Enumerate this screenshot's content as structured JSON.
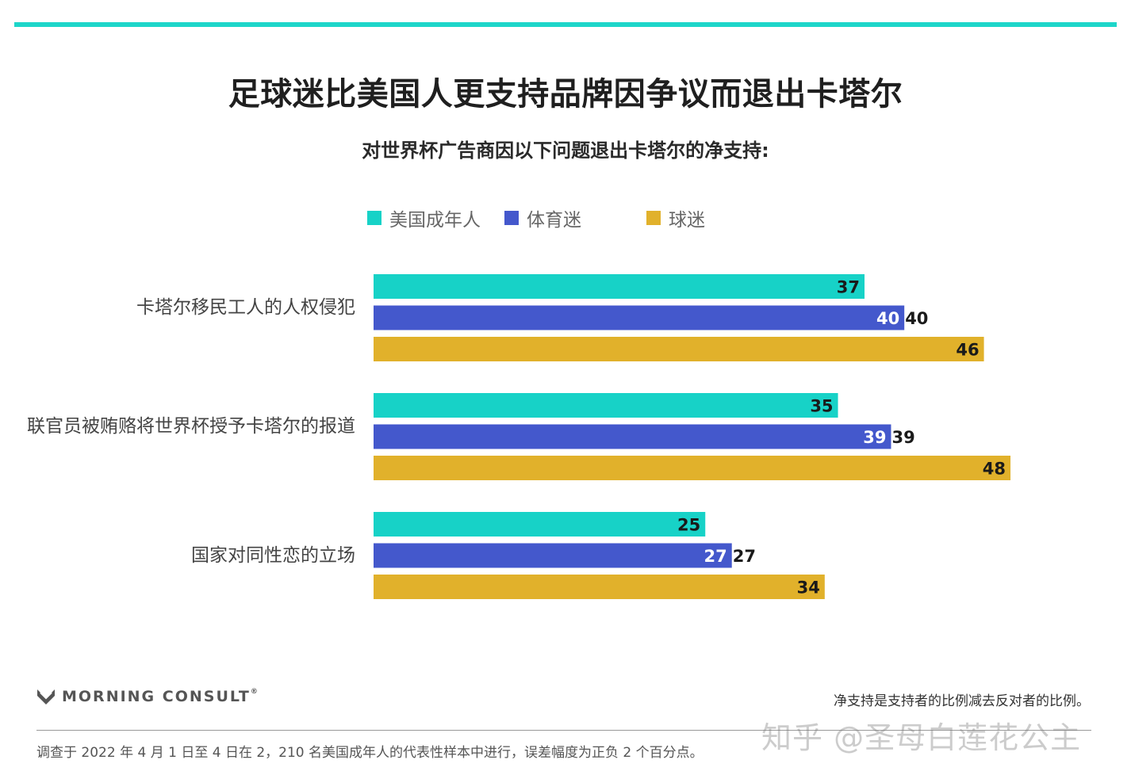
{
  "title": "足球迷比美国人更支持品牌因争议而退出卡塔尔",
  "subtitle": "对世界杯广告商因以下问题退出卡塔尔的净支持:",
  "legend": [
    {
      "label": "美国成年人",
      "color": "#17d2c7"
    },
    {
      "label": "体育迷",
      "color": "#4458cc"
    },
    {
      "label": "球迷",
      "color": "#e1b12b"
    }
  ],
  "chart_data": {
    "type": "bar",
    "orientation": "horizontal",
    "categories": [
      "卡塔尔移民工人的人权侵犯",
      "联官员被贿赂将世界杯授予卡塔尔的报道",
      "国家对同性恋的立场"
    ],
    "series": [
      {
        "name": "美国成年人",
        "color": "#17d2c7",
        "values": [
          37,
          35,
          25
        ]
      },
      {
        "name": "体育迷",
        "color": "#4458cc",
        "values": [
          40,
          39,
          27
        ]
      },
      {
        "name": "球迷",
        "color": "#e1b12b",
        "values": [
          46,
          48,
          34
        ]
      }
    ],
    "xlim": [
      0,
      50
    ],
    "grid": false,
    "legend_position": "top"
  },
  "brand": {
    "name": "MORNING CONSULT",
    "mark": "®"
  },
  "note": "净支持是支持者的比例减去反对者的比例。",
  "footnote": "调查于 2022 年 4 月 1 日至 4 日在 2，210 名美国成年人的代表性样本中进行，误差幅度为正负 2 个百分点。",
  "watermark": "知乎 @圣母白莲花公主"
}
